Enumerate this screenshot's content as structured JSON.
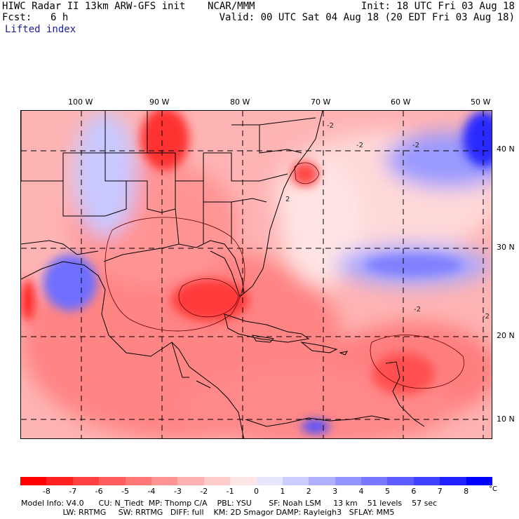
{
  "header": {
    "title": "HIWC Radar II 13km ARW-GFS init",
    "org": "NCAR/MMM",
    "init": "Init: 18 UTC Fri 03 Aug 18",
    "fcst_label": "Fcst:",
    "fcst_value": "6 h",
    "valid": "Valid: 00 UTC Sat 04 Aug 18 (20 EDT Fri 03 Aug 18)",
    "field": "Lifted index"
  },
  "longitude_labels": [
    "100 W",
    "90 W",
    "80 W",
    "70 W",
    "60 W",
    "50 W"
  ],
  "latitude_labels": [
    "40 N",
    "30 N",
    "20 N",
    "10 N"
  ],
  "contour_labels": [
    "-2",
    "-2",
    "-2",
    "-2",
    "2",
    "-2"
  ],
  "colorbar": {
    "ticks": [
      "-8",
      "-7",
      "-6",
      "-5",
      "-4",
      "-3",
      "-2",
      "-1",
      "0",
      "1",
      "2",
      "3",
      "4",
      "5",
      "6",
      "7",
      "8"
    ],
    "unit": "°C",
    "colors": [
      "#ff0000",
      "#ff2020",
      "#ff4040",
      "#ff5c5c",
      "#ff7878",
      "#ff9494",
      "#ffb0b0",
      "#ffcccc",
      "#ffe6e6",
      "#e6e6ff",
      "#ccccff",
      "#b0b0ff",
      "#9494ff",
      "#7878ff",
      "#5c5cff",
      "#4040ff",
      "#2020ff",
      "#0000ff"
    ]
  },
  "footer": {
    "line1": "Model Info: V4.0      CU: N_Tiedt  MP: Thomp C/A    PBL: YSU       SF: Noah LSM     13 km    51 levels    57 sec",
    "line2": "                 LW: RRTMG     SW: RRTMG   DIFF: full    KM: 2D Smagor DAMP: Rayleigh3   SFLAY: MM5"
  }
}
